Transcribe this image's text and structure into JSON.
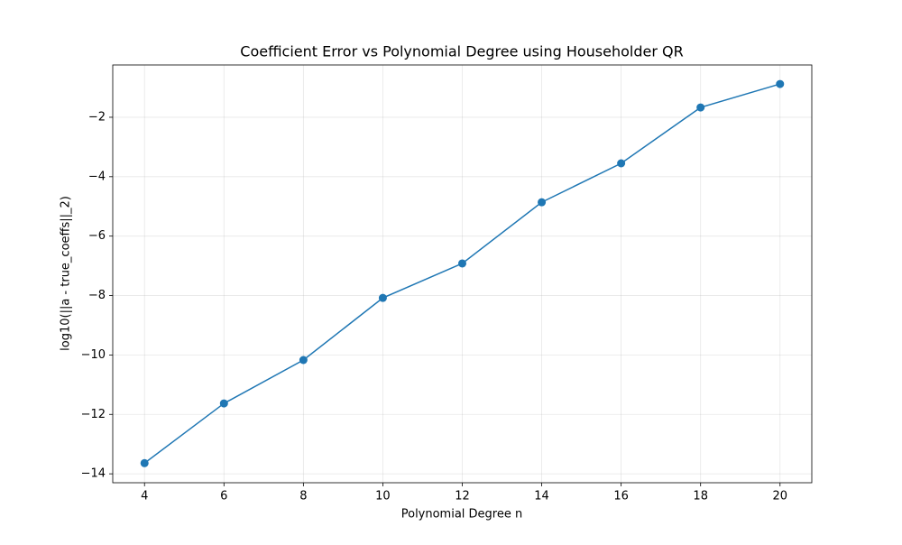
{
  "chart_data": {
    "type": "line",
    "title": "Coefficient Error vs Polynomial Degree using Householder QR",
    "x_label": "Polynomial Degree n",
    "y_label": "log10(||a - true_coeffs||_2)",
    "x": [
      4,
      6,
      8,
      10,
      12,
      14,
      16,
      18,
      20
    ],
    "series": [
      {
        "name": "error",
        "color": "#1f77b4",
        "values": [
          -13.64,
          -11.63,
          -10.17,
          -8.08,
          -6.92,
          -4.86,
          -3.55,
          -1.67,
          -0.88
        ]
      }
    ],
    "xlim": [
      3.2,
      20.8
    ],
    "ylim": [
      -14.3,
      -0.24
    ],
    "xticks": [
      4,
      6,
      8,
      10,
      12,
      14,
      16,
      18,
      20
    ],
    "yticks": [
      {
        "value": -14,
        "label": "−14"
      },
      {
        "value": -12,
        "label": "−12"
      },
      {
        "value": -10,
        "label": "−10"
      },
      {
        "value": -8,
        "label": "−8"
      },
      {
        "value": -6,
        "label": "−6"
      },
      {
        "value": -4,
        "label": "−4"
      },
      {
        "value": -2,
        "label": "−2"
      }
    ],
    "grid": true,
    "markers": true
  }
}
